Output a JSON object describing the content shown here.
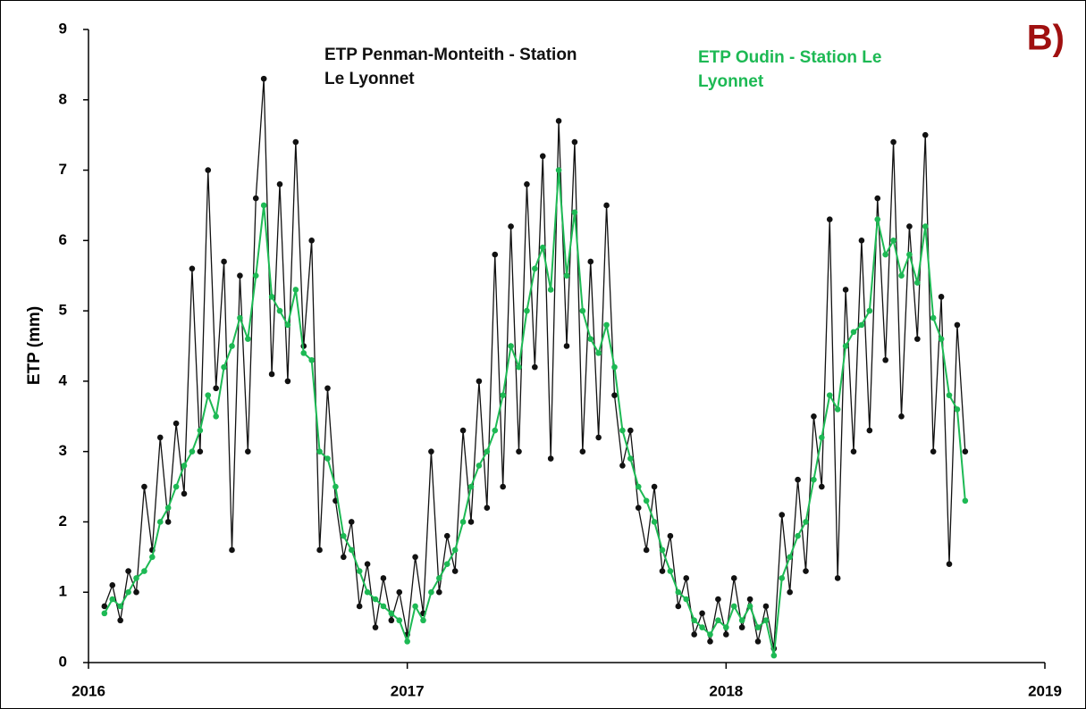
{
  "chart_data": {
    "type": "line",
    "panel_label": "B)",
    "ylabel": "ETP (mm)",
    "xlim": [
      2016,
      2019
    ],
    "xticks": [
      2016,
      2017,
      2018,
      2019
    ],
    "ylim": [
      0,
      9
    ],
    "yticks": [
      0,
      1,
      2,
      3,
      4,
      5,
      6,
      7,
      8,
      9
    ],
    "grid": false,
    "x": [
      2016.05,
      2016.075,
      2016.1,
      2016.125,
      2016.15,
      2016.175,
      2016.2,
      2016.225,
      2016.25,
      2016.275,
      2016.3,
      2016.325,
      2016.35,
      2016.375,
      2016.4,
      2016.425,
      2016.45,
      2016.475,
      2016.5,
      2016.525,
      2016.55,
      2016.575,
      2016.6,
      2016.625,
      2016.65,
      2016.675,
      2016.7,
      2016.725,
      2016.75,
      2016.775,
      2016.8,
      2016.825,
      2016.85,
      2016.875,
      2016.9,
      2016.925,
      2016.95,
      2016.975,
      2017.0,
      2017.025,
      2017.05,
      2017.075,
      2017.1,
      2017.125,
      2017.15,
      2017.175,
      2017.2,
      2017.225,
      2017.25,
      2017.275,
      2017.3,
      2017.325,
      2017.35,
      2017.375,
      2017.4,
      2017.425,
      2017.45,
      2017.475,
      2017.5,
      2017.525,
      2017.55,
      2017.575,
      2017.6,
      2017.625,
      2017.65,
      2017.675,
      2017.7,
      2017.725,
      2017.75,
      2017.775,
      2017.8,
      2017.825,
      2017.85,
      2017.875,
      2017.9,
      2017.925,
      2017.95,
      2017.975,
      2018.0,
      2018.025,
      2018.05,
      2018.075,
      2018.1,
      2018.125,
      2018.15,
      2018.175,
      2018.2,
      2018.225,
      2018.25,
      2018.275,
      2018.3,
      2018.325,
      2018.35,
      2018.375,
      2018.4,
      2018.425,
      2018.45,
      2018.475,
      2018.5,
      2018.525,
      2018.55,
      2018.575,
      2018.6,
      2018.625,
      2018.65,
      2018.675,
      2018.7,
      2018.725,
      2018.75
    ],
    "series": [
      {
        "name": "ETP Penman-Monteith - Station Le Lyonnet",
        "color": "#111111",
        "values": [
          0.8,
          1.1,
          0.6,
          1.3,
          1.0,
          2.5,
          1.6,
          3.2,
          2.0,
          3.4,
          2.4,
          5.6,
          3.0,
          7.0,
          3.9,
          5.7,
          1.6,
          5.5,
          3.0,
          6.6,
          8.3,
          4.1,
          6.8,
          4.0,
          7.4,
          4.5,
          6.0,
          1.6,
          3.9,
          2.3,
          1.5,
          2.0,
          0.8,
          1.4,
          0.5,
          1.2,
          0.6,
          1.0,
          0.4,
          1.5,
          0.7,
          3.0,
          1.0,
          1.8,
          1.3,
          3.3,
          2.0,
          4.0,
          2.2,
          5.8,
          2.5,
          6.2,
          3.0,
          6.8,
          4.2,
          7.2,
          2.9,
          7.7,
          4.5,
          7.4,
          3.0,
          5.7,
          3.2,
          6.5,
          3.8,
          2.8,
          3.3,
          2.2,
          1.6,
          2.5,
          1.3,
          1.8,
          0.8,
          1.2,
          0.4,
          0.7,
          0.3,
          0.9,
          0.4,
          1.2,
          0.5,
          0.9,
          0.3,
          0.8,
          0.2,
          2.1,
          1.0,
          2.6,
          1.3,
          3.5,
          2.5,
          6.3,
          1.2,
          5.3,
          3.0,
          6.0,
          3.3,
          6.6,
          4.3,
          7.4,
          3.5,
          6.2,
          4.6,
          7.5,
          3.0,
          5.2,
          1.4,
          4.8,
          3.0
        ]
      },
      {
        "name": "ETP Oudin - Station Le Lyonnet",
        "color": "#1db954",
        "values": [
          0.7,
          0.9,
          0.8,
          1.0,
          1.2,
          1.3,
          1.5,
          2.0,
          2.2,
          2.5,
          2.8,
          3.0,
          3.3,
          3.8,
          3.5,
          4.2,
          4.5,
          4.9,
          4.6,
          5.5,
          6.5,
          5.2,
          5.0,
          4.8,
          5.3,
          4.4,
          4.3,
          3.0,
          2.9,
          2.5,
          1.8,
          1.6,
          1.3,
          1.0,
          0.9,
          0.8,
          0.7,
          0.6,
          0.3,
          0.8,
          0.6,
          1.0,
          1.2,
          1.4,
          1.6,
          2.0,
          2.5,
          2.8,
          3.0,
          3.3,
          3.8,
          4.5,
          4.2,
          5.0,
          5.6,
          5.9,
          5.3,
          7.0,
          5.5,
          6.4,
          5.0,
          4.6,
          4.4,
          4.8,
          4.2,
          3.3,
          2.9,
          2.5,
          2.3,
          2.0,
          1.6,
          1.3,
          1.0,
          0.9,
          0.6,
          0.5,
          0.4,
          0.6,
          0.5,
          0.8,
          0.6,
          0.8,
          0.5,
          0.6,
          0.1,
          1.2,
          1.5,
          1.8,
          2.0,
          2.6,
          3.2,
          3.8,
          3.6,
          4.5,
          4.7,
          4.8,
          5.0,
          6.3,
          5.8,
          6.0,
          5.5,
          5.8,
          5.4,
          6.2,
          4.9,
          4.6,
          3.8,
          3.6,
          2.3
        ]
      }
    ]
  }
}
